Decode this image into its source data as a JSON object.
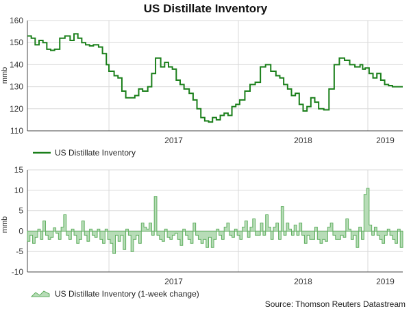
{
  "title": "US Distillate Inventory",
  "source": "Source: Thomson Reuters Datastream",
  "colors": {
    "line": "#1a7f1a",
    "area_fill": "#b7dcb7",
    "area_stroke": "#5fae5f",
    "grid": "#d9d9d9",
    "axis": "#444444"
  },
  "chart_data": [
    {
      "type": "line",
      "ylabel": "mmb",
      "ylim": [
        110,
        160
      ],
      "yticks": [
        110,
        120,
        130,
        140,
        150,
        160
      ],
      "xlim": [
        2016.37,
        2019.27
      ],
      "year_ticks": [
        {
          "label": "2017",
          "x": 2017.0
        },
        {
          "label": "2018",
          "x": 2018.0
        },
        {
          "label": "2019",
          "x": 2019.0
        }
      ],
      "grid": true,
      "legend": "bottom-left",
      "series": [
        {
          "name": "US Distillate Inventory",
          "x": [
            2016.37,
            2016.4,
            2016.43,
            2016.46,
            2016.49,
            2016.52,
            2016.55,
            2016.58,
            2016.62,
            2016.66,
            2016.7,
            2016.73,
            2016.76,
            2016.79,
            2016.82,
            2016.85,
            2016.88,
            2016.92,
            2016.95,
            2016.98,
            2017.0,
            2017.04,
            2017.07,
            2017.1,
            2017.13,
            2017.16,
            2017.2,
            2017.23,
            2017.26,
            2017.3,
            2017.33,
            2017.36,
            2017.4,
            2017.43,
            2017.46,
            2017.49,
            2017.52,
            2017.55,
            2017.58,
            2017.62,
            2017.65,
            2017.68,
            2017.71,
            2017.74,
            2017.77,
            2017.8,
            2017.83,
            2017.86,
            2017.89,
            2017.92,
            2017.95,
            2017.98,
            2018.01,
            2018.05,
            2018.09,
            2018.13,
            2018.17,
            2018.21,
            2018.25,
            2018.29,
            2018.32,
            2018.35,
            2018.38,
            2018.41,
            2018.44,
            2018.47,
            2018.5,
            2018.53,
            2018.56,
            2018.59,
            2018.62,
            2018.66,
            2018.7,
            2018.74,
            2018.78,
            2018.82,
            2018.86,
            2018.9,
            2018.94,
            2018.96,
            2018.98,
            2019.01,
            2019.04,
            2019.07,
            2019.1,
            2019.13,
            2019.16,
            2019.19,
            2019.22,
            2019.25,
            2019.27
          ],
          "values": [
            153,
            152,
            149,
            151,
            150,
            147,
            146.5,
            147,
            152,
            153,
            151,
            154,
            152,
            150,
            149,
            148.5,
            149,
            148,
            145,
            140,
            137,
            135,
            134,
            128,
            125,
            125,
            126,
            129,
            128,
            130,
            136,
            143,
            139,
            141,
            139,
            138,
            133,
            131,
            129,
            127,
            124,
            120,
            116,
            114.5,
            114,
            116,
            115,
            117,
            118,
            117,
            121,
            122,
            124,
            128,
            131,
            132,
            139,
            140,
            137,
            135,
            134,
            131,
            129,
            126,
            127,
            122,
            119,
            121,
            125,
            123,
            120,
            119.5,
            129,
            140,
            143,
            142,
            140,
            139,
            140,
            138,
            138.5,
            136,
            134,
            136,
            133,
            131,
            130.5,
            130,
            130,
            130,
            130
          ]
        }
      ]
    },
    {
      "type": "area",
      "ylabel": "mmb",
      "ylim": [
        -10,
        15
      ],
      "yticks": [
        -10,
        -5,
        0,
        5,
        10,
        15
      ],
      "xlim": [
        2016.37,
        2019.27
      ],
      "year_ticks": [
        {
          "label": "2017",
          "x": 2017.0
        },
        {
          "label": "2018",
          "x": 2018.0
        },
        {
          "label": "2019",
          "x": 2019.0
        }
      ],
      "grid": true,
      "legend": "bottom-left",
      "series": [
        {
          "name": "US Distillate Inventory (1-week change)",
          "x": [
            2016.37,
            2016.39,
            2016.41,
            2016.43,
            2016.45,
            2016.47,
            2016.49,
            2016.51,
            2016.53,
            2016.55,
            2016.57,
            2016.59,
            2016.61,
            2016.63,
            2016.65,
            2016.67,
            2016.69,
            2016.71,
            2016.73,
            2016.75,
            2016.77,
            2016.79,
            2016.81,
            2016.83,
            2016.85,
            2016.87,
            2016.89,
            2016.91,
            2016.93,
            2016.95,
            2016.97,
            2016.99,
            2017.01,
            2017.03,
            2017.05,
            2017.07,
            2017.09,
            2017.11,
            2017.13,
            2017.15,
            2017.17,
            2017.19,
            2017.21,
            2017.23,
            2017.25,
            2017.27,
            2017.29,
            2017.31,
            2017.33,
            2017.35,
            2017.37,
            2017.39,
            2017.41,
            2017.43,
            2017.45,
            2017.47,
            2017.49,
            2017.51,
            2017.53,
            2017.55,
            2017.57,
            2017.59,
            2017.61,
            2017.63,
            2017.65,
            2017.67,
            2017.69,
            2017.71,
            2017.73,
            2017.75,
            2017.77,
            2017.79,
            2017.81,
            2017.83,
            2017.85,
            2017.87,
            2017.89,
            2017.91,
            2017.93,
            2017.95,
            2017.97,
            2017.99,
            2018.01,
            2018.03,
            2018.05,
            2018.07,
            2018.09,
            2018.11,
            2018.13,
            2018.15,
            2018.17,
            2018.19,
            2018.21,
            2018.23,
            2018.25,
            2018.27,
            2018.29,
            2018.31,
            2018.33,
            2018.35,
            2018.37,
            2018.39,
            2018.41,
            2018.43,
            2018.45,
            2018.47,
            2018.49,
            2018.51,
            2018.53,
            2018.55,
            2018.57,
            2018.59,
            2018.61,
            2018.63,
            2018.65,
            2018.67,
            2018.69,
            2018.71,
            2018.73,
            2018.75,
            2018.77,
            2018.79,
            2018.81,
            2018.83,
            2018.85,
            2018.87,
            2018.89,
            2018.91,
            2018.93,
            2018.95,
            2018.97,
            2018.99,
            2019.01,
            2019.03,
            2019.05,
            2019.07,
            2019.09,
            2019.11,
            2019.13,
            2019.15,
            2019.17,
            2019.19,
            2019.21,
            2019.23,
            2019.25,
            2019.27
          ],
          "values": [
            -2.5,
            -1,
            -3,
            -1.5,
            0.5,
            -2,
            2.5,
            -1,
            -2,
            -1.5,
            0.8,
            -0.5,
            -2,
            1,
            4,
            -1,
            -2,
            0.5,
            -1,
            -3,
            -2,
            2.5,
            -1,
            -2.5,
            0.5,
            -1,
            -1.5,
            0.5,
            -2,
            -3,
            0.5,
            -2,
            -3,
            -5.5,
            -1,
            -2.5,
            -1,
            -4.5,
            0.5,
            -1,
            -5,
            -2,
            -1,
            -3,
            2,
            1,
            0.5,
            2,
            -1,
            8.5,
            -1,
            -2,
            -2.5,
            0.5,
            -1.5,
            -2,
            -1,
            -0.5,
            -2,
            -3.5,
            0.5,
            -1,
            -2,
            -3,
            2,
            -1,
            -2,
            -3,
            -2,
            -4,
            -1.5,
            -4,
            -2,
            0.5,
            -1,
            -2,
            1,
            2,
            -1,
            -1.5,
            0.5,
            -1,
            -2,
            1,
            2.5,
            -1.5,
            1,
            3,
            -1,
            -1,
            2,
            -1,
            4,
            1,
            -2,
            1,
            2,
            -2,
            6,
            -1,
            2,
            0.5,
            -1,
            1.5,
            -1,
            2,
            -1,
            -3,
            -1,
            -2,
            -2,
            1,
            -2,
            -3,
            -2,
            -2.5,
            1,
            2,
            -1,
            -2,
            -2,
            -1,
            -1.5,
            3,
            0.5,
            -2,
            -1,
            -4,
            1,
            -2,
            9,
            10.5,
            1.5,
            -1,
            1,
            -1,
            -2,
            -3,
            -1,
            0.5,
            -1,
            -2,
            -3,
            0.5,
            -4,
            -3.5
          ]
        }
      ]
    }
  ],
  "legend_top": "US Distillate Inventory",
  "legend_bottom": "US Distillate Inventory (1-week change)",
  "ylabel_top": "mmb",
  "ylabel_bottom": "mmb"
}
